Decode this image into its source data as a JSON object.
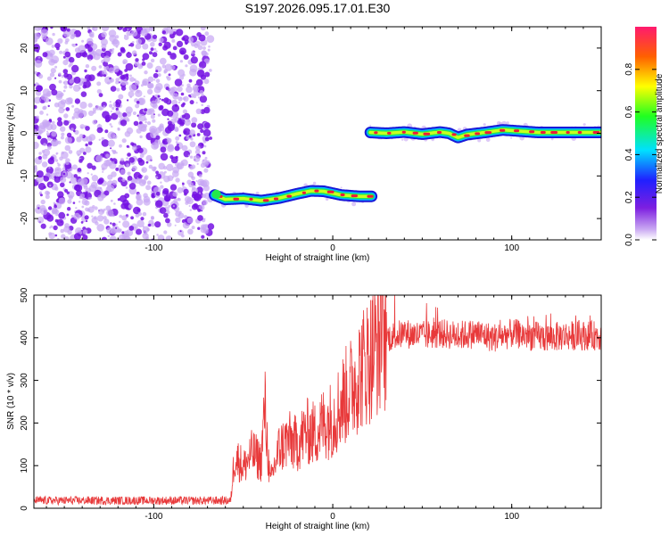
{
  "title": "S197.2026.095.17.01.E30",
  "chart_data": [
    {
      "type": "heatmap",
      "name": "spectrogram",
      "xlabel": "Height of straight line (km)",
      "ylabel": "Frequency (Hz)",
      "xlim": [
        -167,
        150
      ],
      "ylim": [
        -25,
        25
      ],
      "xticks": [
        -100,
        0,
        100
      ],
      "yticks": [
        -20,
        -10,
        0,
        10,
        20
      ],
      "noise_region_x": [
        -167,
        -68
      ],
      "tracks": [
        {
          "x": [
            -66,
            -60,
            -50,
            -40,
            -30,
            -20,
            -12,
            -5,
            5,
            15,
            22
          ],
          "y": [
            -14.5,
            -15.5,
            -15.3,
            -15.8,
            -15.2,
            -14.2,
            -13.5,
            -13.6,
            -14.5,
            -14.8,
            -14.8
          ]
        },
        {
          "x": [
            21,
            30,
            40,
            50,
            60,
            65,
            70,
            75,
            85,
            95,
            105,
            115,
            130,
            150
          ],
          "y": [
            0.2,
            0.0,
            0.3,
            -0.2,
            0.3,
            0.0,
            -1.0,
            -0.3,
            0.2,
            0.8,
            0.5,
            0.2,
            0.2,
            0.2
          ]
        }
      ],
      "colorbar": {
        "label": "Normalized spectral amplitude",
        "ticks": [
          "0.0",
          "0.2",
          "0.4",
          "0.6",
          "0.8"
        ],
        "range": [
          0,
          1
        ]
      }
    },
    {
      "type": "line",
      "name": "snr",
      "xlabel": "Height of straight line (km)",
      "ylabel": "SNR (10 * v/v)",
      "xlim": [
        -167,
        150
      ],
      "ylim": [
        0,
        500
      ],
      "xticks": [
        -100,
        0,
        100
      ],
      "yticks": [
        0,
        100,
        200,
        300,
        400,
        500
      ],
      "color": "#e8393a",
      "series": [
        {
          "name": "SNR",
          "x": [
            -167,
            -100,
            -70,
            -57,
            -55,
            -52,
            -50,
            -45,
            -40,
            -38,
            -35,
            -30,
            -25,
            -20,
            -15,
            -10,
            -5,
            0,
            5,
            10,
            15,
            20,
            25,
            30,
            40,
            50,
            60,
            70,
            80,
            90,
            100,
            110,
            120,
            130,
            140,
            150
          ],
          "y": [
            18,
            18,
            18,
            18,
            120,
            110,
            95,
            130,
            110,
            240,
            60,
            140,
            160,
            150,
            180,
            175,
            200,
            210,
            250,
            280,
            320,
            350,
            385,
            400,
            410,
            405,
            410,
            405,
            410,
            400,
            410,
            405,
            400,
            405,
            405,
            405
          ]
        }
      ]
    }
  ]
}
